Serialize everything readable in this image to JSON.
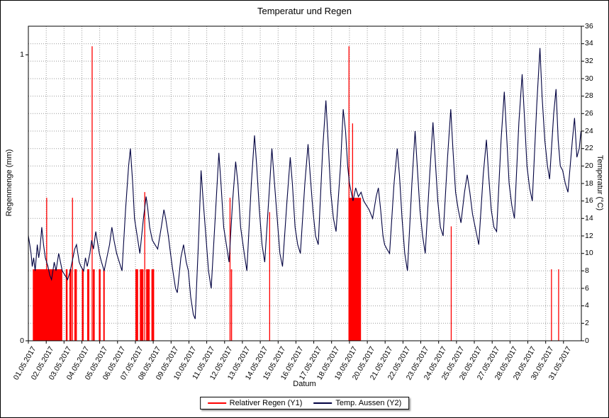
{
  "chart_data": {
    "type": "mixed",
    "title": "Temperatur und Regen",
    "xlabel": "Datum",
    "x_domain_days": [
      0,
      31
    ],
    "x_tick_labels": [
      "01.05.2017",
      "02.05.2017",
      "03.05.2017",
      "04.05.2017",
      "05.05.2017",
      "06.05.2017",
      "07.05.2017",
      "08.05.2017",
      "09.05.2017",
      "10.05.2017",
      "11.05.2017",
      "12.05.2017",
      "13.05.2017",
      "14.05.2017",
      "15.05.2017",
      "16.05.2017",
      "17.05.2017",
      "18.05.2017",
      "19.05.2017",
      "20.05.2017",
      "21.05.2017",
      "22.05.2017",
      "23.05.2017",
      "24.05.2017",
      "25.05.2017",
      "26.05.2017",
      "27.05.2017",
      "28.05.2017",
      "29.05.2017",
      "30.05.2017",
      "31.05.2017"
    ],
    "y1": {
      "label": "Regenmenge (mm)",
      "unit": "mm",
      "ticks": [
        0,
        1
      ],
      "display_max": 1.1
    },
    "y2": {
      "label": "Temperatur (°C)",
      "unit": "°C",
      "min": 0,
      "max": 36,
      "tick_step": 2,
      "ticks": [
        0,
        2,
        4,
        6,
        8,
        10,
        12,
        14,
        16,
        18,
        20,
        22,
        24,
        26,
        28,
        30,
        32,
        34,
        36
      ]
    },
    "grid": {
      "style": "dotted",
      "color": "#999999"
    },
    "series": [
      {
        "name": "Relativer Regen (Y1)",
        "type": "bar",
        "axis": "y1",
        "color": "#ff0000",
        "bars_day_start_end_mm": [
          [
            0.25,
            1.9,
            0.25
          ],
          [
            1.0,
            1.05,
            0.5
          ],
          [
            2.1,
            2.2,
            0.25
          ],
          [
            2.3,
            2.42,
            0.25
          ],
          [
            2.45,
            2.49,
            0.5
          ],
          [
            2.58,
            2.72,
            0.25
          ],
          [
            3.0,
            3.1,
            0.25
          ],
          [
            3.3,
            3.42,
            0.25
          ],
          [
            3.55,
            3.59,
            1.03
          ],
          [
            3.62,
            3.72,
            0.25
          ],
          [
            3.95,
            4.05,
            0.25
          ],
          [
            4.2,
            4.28,
            0.25
          ],
          [
            6.0,
            6.15,
            0.25
          ],
          [
            6.25,
            6.45,
            0.25
          ],
          [
            6.5,
            6.54,
            0.52
          ],
          [
            6.6,
            6.8,
            0.25
          ],
          [
            6.9,
            7.05,
            0.25
          ],
          [
            11.28,
            11.32,
            0.5
          ],
          [
            11.36,
            11.42,
            0.25
          ],
          [
            13.5,
            13.54,
            0.45
          ],
          [
            17.95,
            18.65,
            0.5
          ],
          [
            17.95,
            17.99,
            1.03
          ],
          [
            18.15,
            18.19,
            0.76
          ],
          [
            23.68,
            23.72,
            0.4
          ],
          [
            29.3,
            29.34,
            0.25
          ],
          [
            29.7,
            29.74,
            0.25
          ]
        ]
      },
      {
        "name": "Temp. Aussen (Y2)",
        "type": "line",
        "axis": "y2",
        "color": "#000040",
        "points_day_degC": [
          [
            0.0,
            12
          ],
          [
            0.08,
            11
          ],
          [
            0.15,
            10
          ],
          [
            0.22,
            8.5
          ],
          [
            0.3,
            9.5
          ],
          [
            0.38,
            8
          ],
          [
            0.5,
            11
          ],
          [
            0.58,
            9.5
          ],
          [
            0.65,
            10.5
          ],
          [
            0.75,
            13
          ],
          [
            0.85,
            11
          ],
          [
            0.95,
            9.5
          ],
          [
            1.1,
            8.5
          ],
          [
            1.2,
            7.5
          ],
          [
            1.3,
            7
          ],
          [
            1.45,
            9
          ],
          [
            1.55,
            8
          ],
          [
            1.7,
            10
          ],
          [
            1.8,
            9
          ],
          [
            1.9,
            8
          ],
          [
            2.05,
            7.5
          ],
          [
            2.2,
            7
          ],
          [
            2.35,
            8
          ],
          [
            2.5,
            9.5
          ],
          [
            2.6,
            10.5
          ],
          [
            2.7,
            11
          ],
          [
            2.85,
            9
          ],
          [
            2.95,
            8.5
          ],
          [
            3.1,
            8
          ],
          [
            3.2,
            9.5
          ],
          [
            3.3,
            8.5
          ],
          [
            3.45,
            10
          ],
          [
            3.55,
            11.5
          ],
          [
            3.65,
            10.5
          ],
          [
            3.78,
            12.5
          ],
          [
            3.9,
            11
          ],
          [
            3.98,
            10
          ],
          [
            4.1,
            9
          ],
          [
            4.25,
            8
          ],
          [
            4.4,
            9.5
          ],
          [
            4.55,
            11
          ],
          [
            4.68,
            13
          ],
          [
            4.8,
            11.5
          ],
          [
            4.95,
            10
          ],
          [
            5.1,
            9
          ],
          [
            5.25,
            8
          ],
          [
            5.45,
            15
          ],
          [
            5.62,
            20
          ],
          [
            5.72,
            22
          ],
          [
            5.85,
            18
          ],
          [
            5.95,
            14
          ],
          [
            6.1,
            12
          ],
          [
            6.25,
            10
          ],
          [
            6.45,
            14
          ],
          [
            6.6,
            16.5
          ],
          [
            6.7,
            15
          ],
          [
            6.8,
            13
          ],
          [
            6.95,
            11.5
          ],
          [
            7.1,
            11
          ],
          [
            7.25,
            10.5
          ],
          [
            7.45,
            13
          ],
          [
            7.6,
            15
          ],
          [
            7.7,
            14
          ],
          [
            7.85,
            12
          ],
          [
            7.97,
            10
          ],
          [
            8.1,
            8
          ],
          [
            8.25,
            6
          ],
          [
            8.35,
            5.5
          ],
          [
            8.55,
            9.5
          ],
          [
            8.7,
            11
          ],
          [
            8.85,
            9
          ],
          [
            8.97,
            8
          ],
          [
            9.1,
            5
          ],
          [
            9.25,
            3
          ],
          [
            9.35,
            2.5
          ],
          [
            9.55,
            12
          ],
          [
            9.68,
            19.5
          ],
          [
            9.8,
            16
          ],
          [
            9.95,
            12
          ],
          [
            10.1,
            8
          ],
          [
            10.25,
            6
          ],
          [
            10.5,
            15
          ],
          [
            10.68,
            21.5
          ],
          [
            10.8,
            18
          ],
          [
            10.95,
            13
          ],
          [
            11.1,
            11
          ],
          [
            11.25,
            9
          ],
          [
            11.45,
            16
          ],
          [
            11.62,
            20.5
          ],
          [
            11.75,
            18
          ],
          [
            11.9,
            13
          ],
          [
            12.1,
            10
          ],
          [
            12.25,
            8
          ],
          [
            12.5,
            18
          ],
          [
            12.68,
            23.5
          ],
          [
            12.8,
            20
          ],
          [
            12.95,
            15
          ],
          [
            13.1,
            11
          ],
          [
            13.25,
            9
          ],
          [
            13.5,
            17
          ],
          [
            13.65,
            22
          ],
          [
            13.8,
            18
          ],
          [
            13.95,
            14
          ],
          [
            14.1,
            10
          ],
          [
            14.25,
            8.5
          ],
          [
            14.5,
            16
          ],
          [
            14.68,
            21
          ],
          [
            14.8,
            18
          ],
          [
            14.95,
            13
          ],
          [
            15.1,
            11
          ],
          [
            15.25,
            10
          ],
          [
            15.5,
            18
          ],
          [
            15.68,
            22.5
          ],
          [
            15.8,
            19
          ],
          [
            15.95,
            15
          ],
          [
            16.1,
            12
          ],
          [
            16.25,
            11
          ],
          [
            16.5,
            22
          ],
          [
            16.68,
            27.5
          ],
          [
            16.8,
            23
          ],
          [
            16.95,
            17
          ],
          [
            17.1,
            14
          ],
          [
            17.25,
            12.5
          ],
          [
            17.5,
            20
          ],
          [
            17.65,
            26.5
          ],
          [
            17.78,
            24
          ],
          [
            17.9,
            20
          ],
          [
            18.0,
            18
          ],
          [
            18.1,
            17
          ],
          [
            18.2,
            16
          ],
          [
            18.35,
            17.5
          ],
          [
            18.5,
            16.5
          ],
          [
            18.65,
            17
          ],
          [
            18.8,
            16
          ],
          [
            18.95,
            15.5
          ],
          [
            19.1,
            15
          ],
          [
            19.3,
            14
          ],
          [
            19.5,
            16.5
          ],
          [
            19.62,
            17.5
          ],
          [
            19.75,
            15
          ],
          [
            19.88,
            12
          ],
          [
            19.97,
            11
          ],
          [
            20.1,
            10.5
          ],
          [
            20.25,
            10
          ],
          [
            20.5,
            18
          ],
          [
            20.68,
            22
          ],
          [
            20.8,
            19
          ],
          [
            20.95,
            14
          ],
          [
            21.1,
            10
          ],
          [
            21.25,
            8
          ],
          [
            21.5,
            18
          ],
          [
            21.68,
            24
          ],
          [
            21.8,
            20
          ],
          [
            21.95,
            15
          ],
          [
            22.1,
            12
          ],
          [
            22.25,
            10
          ],
          [
            22.5,
            19
          ],
          [
            22.68,
            25
          ],
          [
            22.8,
            21
          ],
          [
            22.95,
            16
          ],
          [
            23.1,
            13
          ],
          [
            23.25,
            12
          ],
          [
            23.5,
            21
          ],
          [
            23.68,
            26.5
          ],
          [
            23.8,
            22
          ],
          [
            23.95,
            17
          ],
          [
            24.1,
            15
          ],
          [
            24.25,
            13.5
          ],
          [
            24.45,
            17
          ],
          [
            24.6,
            19
          ],
          [
            24.75,
            17
          ],
          [
            24.9,
            14.5
          ],
          [
            25.1,
            12.5
          ],
          [
            25.25,
            11
          ],
          [
            25.5,
            19
          ],
          [
            25.68,
            23
          ],
          [
            25.8,
            19
          ],
          [
            25.95,
            15
          ],
          [
            26.1,
            13
          ],
          [
            26.25,
            12.5
          ],
          [
            26.5,
            23
          ],
          [
            26.68,
            28.5
          ],
          [
            26.8,
            24
          ],
          [
            26.95,
            18
          ],
          [
            27.1,
            15.5
          ],
          [
            27.25,
            14
          ],
          [
            27.5,
            25
          ],
          [
            27.68,
            30.5
          ],
          [
            27.8,
            26
          ],
          [
            27.95,
            20
          ],
          [
            28.1,
            17.5
          ],
          [
            28.25,
            16
          ],
          [
            28.5,
            27
          ],
          [
            28.68,
            33.5
          ],
          [
            28.8,
            28
          ],
          [
            28.95,
            23
          ],
          [
            29.1,
            20
          ],
          [
            29.22,
            18.5
          ],
          [
            29.45,
            26
          ],
          [
            29.58,
            28.8
          ],
          [
            29.7,
            23
          ],
          [
            29.82,
            20
          ],
          [
            29.95,
            19.5
          ],
          [
            30.1,
            18
          ],
          [
            30.25,
            17
          ],
          [
            30.5,
            23
          ],
          [
            30.62,
            25.5
          ],
          [
            30.75,
            21
          ],
          [
            30.88,
            22
          ],
          [
            30.98,
            24
          ]
        ]
      }
    ],
    "legend_position": "bottom-center"
  }
}
